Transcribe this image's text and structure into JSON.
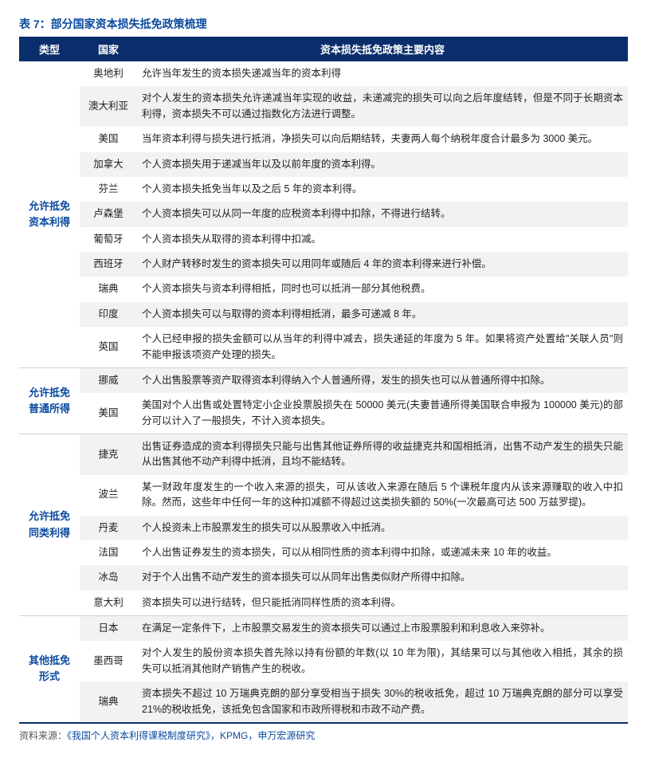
{
  "title": "表 7：部分国家资本损失抵免政策梳理",
  "header": {
    "type": "类型",
    "country": "国家",
    "content": "资本损失抵免政策主要内容"
  },
  "groups": [
    {
      "type_label": "允许抵免资本利得",
      "rows": [
        {
          "country": "奥地利",
          "content": "允许当年发生的资本损失递减当年的资本利得"
        },
        {
          "country": "澳大利亚",
          "content": "对个人发生的资本损失允许递减当年实现的收益，未递减完的损失可以向之后年度结转，但是不同于长期资本利得，资本损失不可以通过指数化方法进行调整。"
        },
        {
          "country": "美国",
          "content": "当年资本利得与损失进行抵消，净损失可以向后期结转，夫妻两人每个纳税年度合计最多为 3000 美元。"
        },
        {
          "country": "加拿大",
          "content": "个人资本损失用于递减当年以及以前年度的资本利得。"
        },
        {
          "country": "芬兰",
          "content": "个人资本损失抵免当年以及之后 5 年的资本利得。"
        },
        {
          "country": "卢森堡",
          "content": "个人资本损失可以从同一年度的应税资本利得中扣除，不得进行结转。"
        },
        {
          "country": "葡萄牙",
          "content": "个人资本损失从取得的资本利得中扣减。"
        },
        {
          "country": "西班牙",
          "content": "个人财产转移时发生的资本损失可以用同年或随后 4 年的资本利得来进行补偿。"
        },
        {
          "country": "瑞典",
          "content": "个人资本损失与资本利得相抵，同时也可以抵消一部分其他税费。"
        },
        {
          "country": "印度",
          "content": "个人资本损失可以与取得的资本利得相抵消，最多可递减 8 年。"
        },
        {
          "country": "英国",
          "content": "个人已经申报的损失金额可以从当年的利得中减去，损失递延的年度为 5 年。如果将资产处置给\"关联人员\"则不能申报该项资产处理的损失。"
        }
      ]
    },
    {
      "type_label": "允许抵免普通所得",
      "rows": [
        {
          "country": "挪威",
          "content": "个人出售股票等资产取得资本利得纳入个人普通所得，发生的损失也可以从普通所得中扣除。"
        },
        {
          "country": "美国",
          "content": "美国对个人出售或处置特定小企业投票股损失在 50000 美元(夫妻普通所得美国联合申报为 100000 美元)的部分可以计入了一般损失，不计入资本损失。"
        }
      ]
    },
    {
      "type_label": "允许抵免同类利得",
      "rows": [
        {
          "country": "捷克",
          "content": "出售证券造成的资本利得损失只能与出售其他证券所得的收益捷克共和国相抵消，出售不动产发生的损失只能从出售其他不动产利得中抵消，且均不能结转。"
        },
        {
          "country": "波兰",
          "content": "某一财政年度发生的一个收入来源的损失，可从该收入来源在随后 5 个课税年度内从该来源赚取的收入中扣除。然而，这些年中任何一年的这种扣减额不得超过这类损失额的 50%(一次最高可达 500 万兹罗提)。"
        },
        {
          "country": "丹麦",
          "content": "个人投资未上市股票发生的损失可以从股票收入中抵消。"
        },
        {
          "country": "法国",
          "content": "个人出售证券发生的资本损失，可以从相同性质的资本利得中扣除，或递减未来 10 年的收益。"
        },
        {
          "country": "冰岛",
          "content": "对于个人出售不动产发生的资本损失可以从同年出售类似财产所得中扣除。"
        },
        {
          "country": "意大利",
          "content": "资本损失可以进行结转，但只能抵消同样性质的资本利得。"
        }
      ]
    },
    {
      "type_label": "其他抵免形式",
      "rows": [
        {
          "country": "日本",
          "content": "在满足一定条件下，上市股票交易发生的资本损失可以通过上市股票股利和利息收入来弥补。"
        },
        {
          "country": "墨西哥",
          "content": "对个人发生的股份资本损失首先除以持有份额的年数(以 10 年为限)，其结果可以与其他收入相抵，其余的损失可以抵消其他财产销售产生的税收。"
        },
        {
          "country": "瑞典",
          "content": "资本损失不超过 10 万瑞典克朗的部分享受相当于损失 30%的税收抵免，超过 10 万瑞典克朗的部分可以享受  21%的税收抵免，该抵免包含国家和市政所得税和市政不动产费。"
        }
      ]
    }
  ],
  "source_label": "资料来源：",
  "source_text": "《我国个人资本利得课税制度研究》，KPMG，申万宏源研究"
}
